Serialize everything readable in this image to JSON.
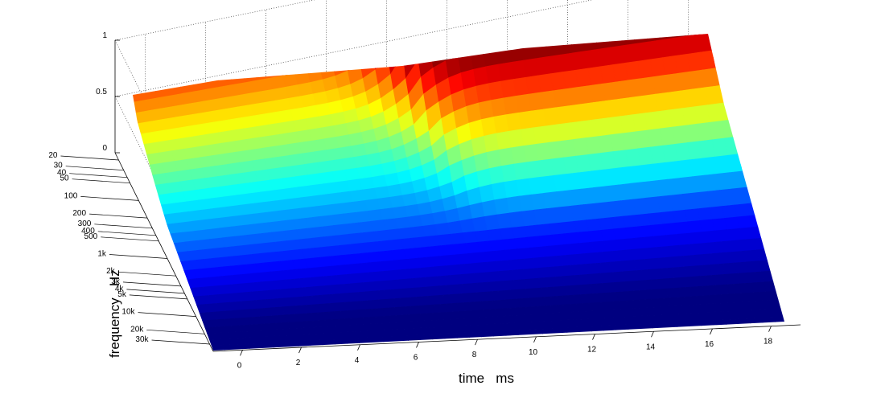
{
  "chart_data": {
    "type": "surface3d",
    "title": "",
    "xlabel": "time   ms",
    "ylabel": "frequency   Hz",
    "zlabel": "",
    "colormap": "jet",
    "x_ticks": [
      0,
      2,
      4,
      6,
      8,
      10,
      12,
      14,
      16,
      18
    ],
    "x_range": [
      -1,
      19
    ],
    "y_ticks": [
      "20",
      "30",
      "40",
      "50",
      "100",
      "200",
      "300",
      "400",
      "500",
      "1k",
      "2k",
      "3k",
      "4k",
      "5k",
      "10k",
      "20k",
      "30k"
    ],
    "y_tick_values": [
      20,
      30,
      40,
      50,
      100,
      200,
      300,
      400,
      500,
      1000,
      2000,
      3000,
      4000,
      5000,
      10000,
      20000,
      30000
    ],
    "y_scale": "log",
    "y_range": [
      15,
      40000
    ],
    "z_ticks": [
      0,
      0.5,
      1
    ],
    "z_range": [
      0,
      1
    ],
    "arrival_time_ms": {
      "frequencies": [
        20,
        100,
        1000,
        10000,
        30000
      ],
      "times": [
        6.3,
        7.6,
        8.7,
        9.6,
        9.9
      ]
    },
    "grid": true
  },
  "colors": {
    "jet_start": "#00008f",
    "jet_end": "#800000",
    "background": "#ffffff",
    "axis": "#000000"
  }
}
